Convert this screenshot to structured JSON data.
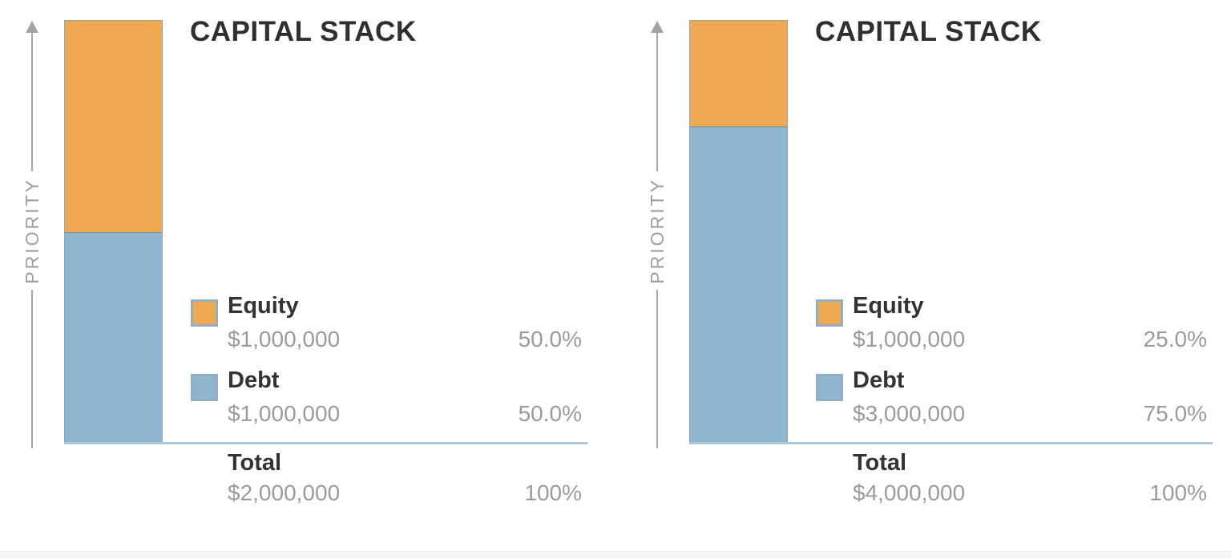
{
  "chart_data": [
    {
      "type": "bar",
      "subtype": "stacked-vertical-single-bar",
      "title": "CAPITAL STACK",
      "axis_label": "PRIORITY",
      "legend_position": "right-of-bar",
      "segments": [
        {
          "name": "Equity",
          "amount": "$1,000,000",
          "value": 1000000,
          "pct": 50.0,
          "percent_label": "50.0%",
          "color": "#F0A953"
        },
        {
          "name": "Debt",
          "amount": "$1,000,000",
          "value": 1000000,
          "pct": 50.0,
          "percent_label": "50.0%",
          "color": "#8FB5D1"
        }
      ],
      "total": {
        "label": "Total",
        "amount": "$2,000,000",
        "value": 2000000,
        "percent_label": "100%"
      }
    },
    {
      "type": "bar",
      "subtype": "stacked-vertical-single-bar",
      "title": "CAPITAL STACK",
      "axis_label": "PRIORITY",
      "legend_position": "right-of-bar",
      "segments": [
        {
          "name": "Equity",
          "amount": "$1,000,000",
          "value": 1000000,
          "pct": 25.0,
          "percent_label": "25.0%",
          "color": "#F0A953"
        },
        {
          "name": "Debt",
          "amount": "$3,000,000",
          "value": 3000000,
          "pct": 75.0,
          "percent_label": "75.0%",
          "color": "#8FB5D1"
        }
      ],
      "total": {
        "label": "Total",
        "amount": "$4,000,000",
        "value": 4000000,
        "percent_label": "100%"
      }
    }
  ],
  "colors": {
    "equity": "#F0A953",
    "debt": "#8FB5D1",
    "baseline": "#A9C3D7",
    "axis": "#A8A8A8",
    "title_text": "#2D2F33",
    "label_text": "#333333",
    "muted_text": "#9B9B9B",
    "swatch_border": "#93AEC2",
    "bottom_strip": "#F5F5F3"
  }
}
